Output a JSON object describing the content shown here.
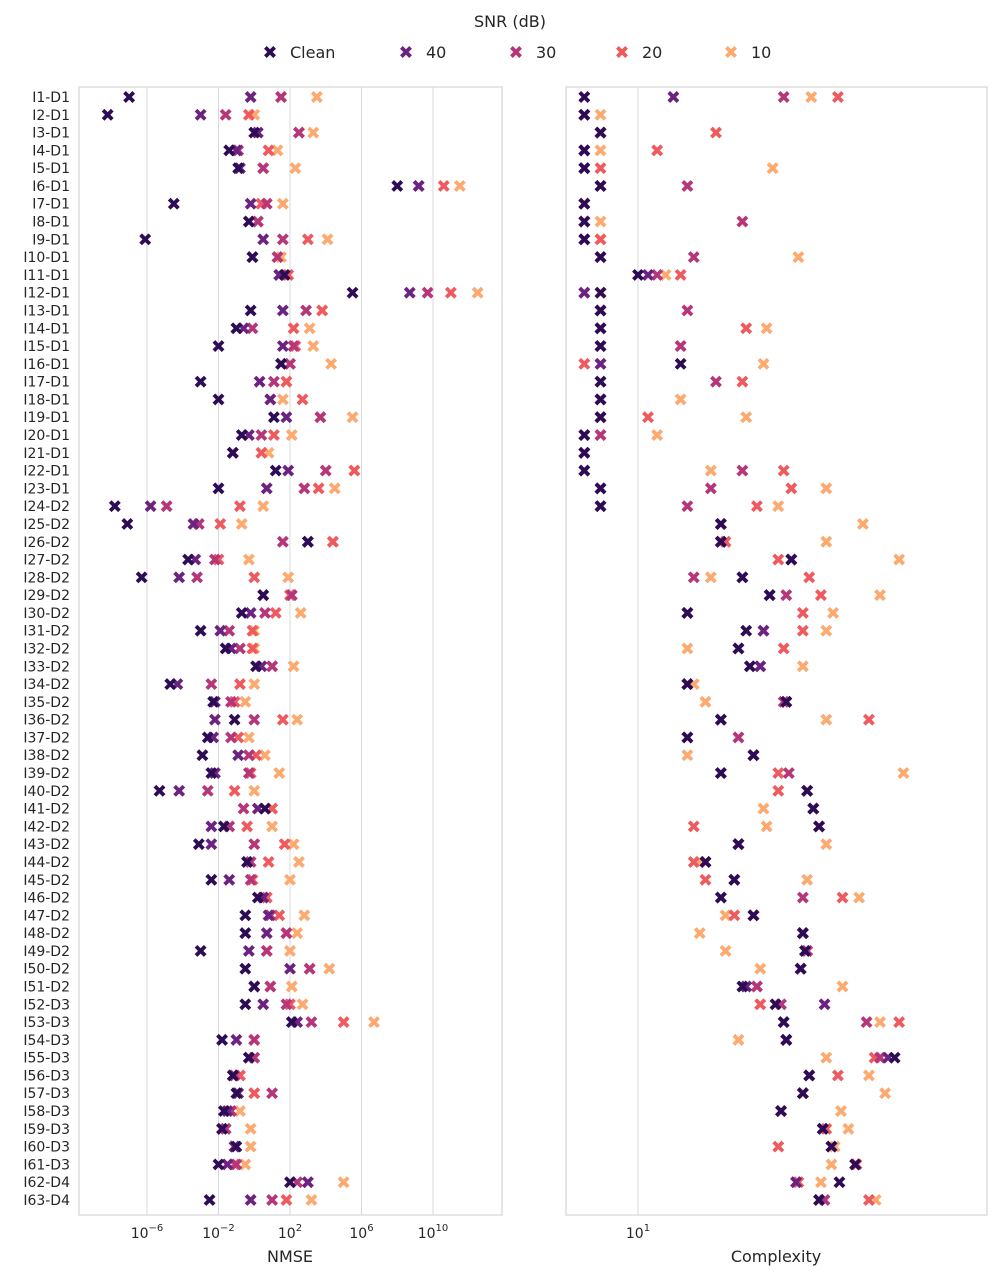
{
  "legend": {
    "title": "SNR (dB)",
    "entries": [
      {
        "key": "clean",
        "label": "Clean",
        "color": "#2d0c56"
      },
      {
        "key": "s40",
        "label": "40",
        "color": "#6c2280"
      },
      {
        "key": "s30",
        "label": "30",
        "color": "#b5377a"
      },
      {
        "key": "s20",
        "label": "20",
        "color": "#ee5a5e"
      },
      {
        "key": "s10",
        "label": "10",
        "color": "#fdaa70"
      }
    ]
  },
  "chart_data": [
    {
      "type": "scatter",
      "xlabel": "NMSE",
      "xscale": "log",
      "xlim_log10": [
        -9,
        16
      ],
      "xticks": [
        {
          "label": "10",
          "exp": "−6",
          "log10": -6
        },
        {
          "label": "10",
          "exp": "−2",
          "log10": -2
        },
        {
          "label": "10",
          "exp": "2",
          "log10": 2
        },
        {
          "label": "10",
          "exp": "6",
          "log10": 6
        },
        {
          "label": "10",
          "exp": "10",
          "log10": 10
        }
      ],
      "grid": "vertical",
      "note": "values are log10(NMSE), order per row: [Clean, 40, 30, 20, 10]",
      "log10_values": [
        [
          -7.0,
          -0.2,
          1.5,
          1.5,
          3.5
        ],
        [
          -8.2,
          -3.0,
          -1.6,
          -0.3,
          0.0
        ],
        [
          0.0,
          0.2,
          2.5,
          2.5,
          3.3
        ],
        [
          -1.4,
          -1.0,
          -0.9,
          0.8,
          1.3
        ],
        [
          -0.9,
          -0.8,
          0.5,
          0.5,
          2.3
        ],
        [
          8.0,
          9.2,
          9.2,
          10.6,
          11.5
        ],
        [
          -4.5,
          -0.2,
          0.7,
          0.4,
          1.6
        ],
        [
          -0.3,
          -0.3,
          0.2,
          0.2,
          0.2
        ],
        [
          -6.1,
          0.5,
          1.6,
          3.0,
          4.1
        ],
        [
          -0.1,
          -0.1,
          1.3,
          1.3,
          1.5
        ],
        [
          1.7,
          1.4,
          1.4,
          1.9,
          1.9
        ],
        [
          5.5,
          8.7,
          9.7,
          11.0,
          12.5
        ],
        [
          -0.2,
          1.6,
          2.9,
          3.8,
          3.8
        ],
        [
          -1.0,
          -0.6,
          -0.1,
          2.2,
          3.1
        ],
        [
          -2.0,
          1.6,
          2.2,
          2.3,
          3.3
        ],
        [
          1.5,
          1.5,
          2.0,
          2.0,
          4.3
        ],
        [
          -3.0,
          0.3,
          1.1,
          1.8,
          1.8
        ],
        [
          -2.0,
          0.9,
          0.9,
          2.7,
          1.6
        ],
        [
          1.1,
          1.8,
          3.7,
          3.7,
          5.5
        ],
        [
          -0.7,
          -0.3,
          0.4,
          1.1,
          2.1
        ],
        [
          -1.2,
          -1.2,
          -1.2,
          0.4,
          0.8
        ],
        [
          1.2,
          1.9,
          4.0,
          5.6,
          5.6
        ],
        [
          -2.0,
          0.7,
          2.8,
          3.6,
          4.5
        ],
        [
          -7.8,
          -5.8,
          -4.9,
          -0.8,
          0.5
        ],
        [
          -7.1,
          -3.4,
          -3.1,
          -1.9,
          -0.7
        ],
        [
          3.0,
          3.0,
          1.6,
          4.4,
          4.4
        ],
        [
          -3.7,
          -3.3,
          -2.2,
          -2.0,
          -0.3
        ],
        [
          -6.3,
          -4.2,
          -3.2,
          0.0,
          1.9
        ],
        [
          0.5,
          0.5,
          2.1,
          2.0,
          2.1
        ],
        [
          -0.7,
          -0.2,
          0.6,
          1.2,
          2.6
        ],
        [
          -3.0,
          -1.9,
          -1.4,
          -0.1,
          0.0
        ],
        [
          -1.6,
          -1.3,
          -0.8,
          -0.1,
          0.0
        ],
        [
          0.1,
          0.4,
          1.0,
          1.0,
          2.2
        ],
        [
          -4.7,
          -4.3,
          -2.4,
          -0.8,
          0.0
        ],
        [
          -2.3,
          -2.2,
          -1.3,
          -1.1,
          -0.5
        ],
        [
          -1.1,
          -2.2,
          0.0,
          1.6,
          2.4
        ],
        [
          -2.6,
          -2.3,
          -1.3,
          -0.9,
          -0.3
        ],
        [
          -2.9,
          -0.9,
          -0.3,
          0.1,
          0.6
        ],
        [
          -2.4,
          -2.2,
          -0.3,
          -0.2,
          1.4
        ],
        [
          -5.3,
          -4.2,
          -2.6,
          -1.1,
          0.0
        ],
        [
          0.6,
          0.2,
          -0.6,
          1.0,
          1.0
        ],
        [
          -1.7,
          -2.4,
          -1.4,
          -0.4,
          1.0
        ],
        [
          -3.1,
          -2.4,
          0.0,
          1.7,
          2.2
        ],
        [
          -0.4,
          -0.4,
          -0.2,
          0.8,
          2.5
        ],
        [
          -2.4,
          -1.4,
          -0.2,
          -0.1,
          2.0
        ],
        [
          0.2,
          0.5,
          0.5,
          0.7,
          0.7
        ],
        [
          -0.5,
          0.8,
          0.9,
          1.4,
          2.8
        ],
        [
          -0.5,
          0.7,
          1.8,
          1.8,
          2.4
        ],
        [
          -3.0,
          -0.3,
          0.7,
          0.7,
          2.0
        ],
        [
          -0.5,
          2.0,
          3.1,
          3.1,
          4.2
        ],
        [
          0.0,
          0.0,
          0.9,
          0.9,
          2.1
        ],
        [
          -0.5,
          0.5,
          1.8,
          2.0,
          2.7
        ],
        [
          2.1,
          2.4,
          3.2,
          5.0,
          6.7
        ],
        [
          -1.8,
          -1.0,
          0.0,
          0.0,
          0.0
        ],
        [
          -0.3,
          -0.3,
          0.0,
          -0.3,
          0.0
        ],
        [
          -1.2,
          -1.2,
          -1.1,
          -0.8,
          -0.8
        ],
        [
          -1.0,
          -0.9,
          1.0,
          0.0,
          0.0
        ],
        [
          -1.7,
          -1.5,
          -1.3,
          -1.3,
          -0.8
        ],
        [
          -1.8,
          -1.8,
          -1.6,
          -1.6,
          -0.2
        ],
        [
          -1.0,
          -1.1,
          -1.1,
          -1.1,
          -0.2
        ],
        [
          -2.0,
          -1.5,
          -1.0,
          -1.1,
          -0.5
        ],
        [
          2.0,
          3.0,
          2.4,
          3.0,
          5.0
        ],
        [
          -2.5,
          -0.2,
          1.0,
          1.8,
          3.2
        ]
      ]
    },
    {
      "type": "scatter",
      "xlabel": "Complexity",
      "xscale": "log",
      "xlim": [
        4.73,
        180
      ],
      "xticks": [
        {
          "label": "10",
          "exp": "1",
          "value": 10
        }
      ],
      "grid": "vertical",
      "note": "order per row: [Clean, 40, 30, 20, 10]",
      "values": [
        [
          6,
          14,
          40,
          67,
          52
        ],
        [
          6,
          6,
          6,
          6,
          7
        ],
        [
          7,
          7,
          7,
          21,
          7
        ],
        [
          6,
          6,
          6,
          12,
          7
        ],
        [
          6,
          6,
          6,
          7,
          36
        ],
        [
          7,
          7,
          16,
          7,
          7
        ],
        [
          6,
          6,
          6,
          6,
          6
        ],
        [
          6,
          6,
          27,
          6,
          7
        ],
        [
          6,
          6,
          6,
          7,
          7
        ],
        [
          7,
          7,
          17,
          7,
          46
        ],
        [
          10,
          11,
          12,
          15,
          13
        ],
        [
          7,
          6,
          6,
          7,
          7
        ],
        [
          7,
          7,
          16,
          7,
          7
        ],
        [
          7,
          7,
          7,
          28,
          34
        ],
        [
          7,
          7,
          15,
          15,
          7
        ],
        [
          15,
          7,
          7,
          6,
          33
        ],
        [
          7,
          7,
          21,
          27,
          7
        ],
        [
          7,
          7,
          7,
          7,
          15
        ],
        [
          7,
          7,
          7,
          11,
          28
        ],
        [
          6,
          6,
          7,
          7,
          12
        ],
        [
          6,
          6,
          6,
          6,
          6
        ],
        [
          6,
          6,
          27,
          40,
          20
        ],
        [
          7,
          7,
          20,
          43,
          60
        ],
        [
          7,
          7,
          16,
          31,
          38
        ],
        [
          22,
          22,
          22,
          22,
          85
        ],
        [
          22,
          22,
          22,
          23,
          60
        ],
        [
          43,
          43,
          43,
          38,
          120
        ],
        [
          27,
          27,
          17,
          51,
          20
        ],
        [
          35,
          35,
          41,
          57,
          100
        ],
        [
          16,
          16,
          16,
          48,
          64
        ],
        [
          28,
          33,
          33,
          48,
          60
        ],
        [
          26,
          26,
          26,
          40,
          16
        ],
        [
          29,
          32,
          32,
          29,
          48
        ],
        [
          16,
          16,
          16,
          16,
          17
        ],
        [
          41,
          41,
          40,
          41,
          19
        ],
        [
          22,
          22,
          22,
          90,
          60
        ],
        [
          16,
          16,
          26,
          26,
          16
        ],
        [
          30,
          30,
          30,
          30,
          16
        ],
        [
          22,
          22,
          42,
          38,
          125
        ],
        [
          50,
          50,
          50,
          38,
          50
        ],
        [
          53,
          53,
          53,
          53,
          33
        ],
        [
          56,
          56,
          56,
          17,
          34
        ],
        [
          26,
          26,
          26,
          26,
          60
        ],
        [
          19,
          19,
          19,
          17,
          18
        ],
        [
          25,
          25,
          25,
          19,
          50
        ],
        [
          22,
          22,
          48,
          70,
          82
        ],
        [
          30,
          30,
          30,
          25,
          23
        ],
        [
          48,
          48,
          48,
          48,
          18
        ],
        [
          49,
          49,
          50,
          50,
          23
        ],
        [
          47,
          47,
          47,
          47,
          32
        ],
        [
          27,
          28,
          31,
          31,
          70
        ],
        [
          37,
          59,
          39,
          32,
          32
        ],
        [
          40,
          40,
          88,
          120,
          100
        ],
        [
          41,
          41,
          41,
          41,
          26
        ],
        [
          115,
          108,
          100,
          95,
          60
        ],
        [
          51,
          51,
          51,
          67,
          90
        ],
        [
          48,
          48,
          48,
          48,
          105
        ],
        [
          39,
          39,
          39,
          39,
          69
        ],
        [
          58,
          58,
          58,
          60,
          74
        ],
        [
          63,
          63,
          63,
          38,
          65
        ],
        [
          79,
          79,
          79,
          80,
          63
        ],
        [
          68,
          45,
          45,
          46,
          57
        ],
        [
          56,
          56,
          59,
          90,
          96
        ]
      ]
    }
  ],
  "row_labels": [
    "I1-D1",
    "I2-D1",
    "I3-D1",
    "I4-D1",
    "I5-D1",
    "I6-D1",
    "I7-D1",
    "I8-D1",
    "I9-D1",
    "I10-D1",
    "I11-D1",
    "I12-D1",
    "I13-D1",
    "I14-D1",
    "I15-D1",
    "I16-D1",
    "I17-D1",
    "I18-D1",
    "I19-D1",
    "I20-D1",
    "I21-D1",
    "I22-D1",
    "I23-D1",
    "I24-D2",
    "I25-D2",
    "I26-D2",
    "I27-D2",
    "I28-D2",
    "I29-D2",
    "I30-D2",
    "I31-D2",
    "I32-D2",
    "I33-D2",
    "I34-D2",
    "I35-D2",
    "I36-D2",
    "I37-D2",
    "I38-D2",
    "I39-D2",
    "I40-D2",
    "I41-D2",
    "I42-D2",
    "I43-D2",
    "I44-D2",
    "I45-D2",
    "I46-D2",
    "I47-D2",
    "I48-D2",
    "I49-D2",
    "I50-D2",
    "I51-D2",
    "I52-D3",
    "I53-D3",
    "I54-D3",
    "I55-D3",
    "I56-D3",
    "I57-D3",
    "I58-D3",
    "I59-D3",
    "I60-D3",
    "I61-D3",
    "I62-D4",
    "I63-D4"
  ]
}
